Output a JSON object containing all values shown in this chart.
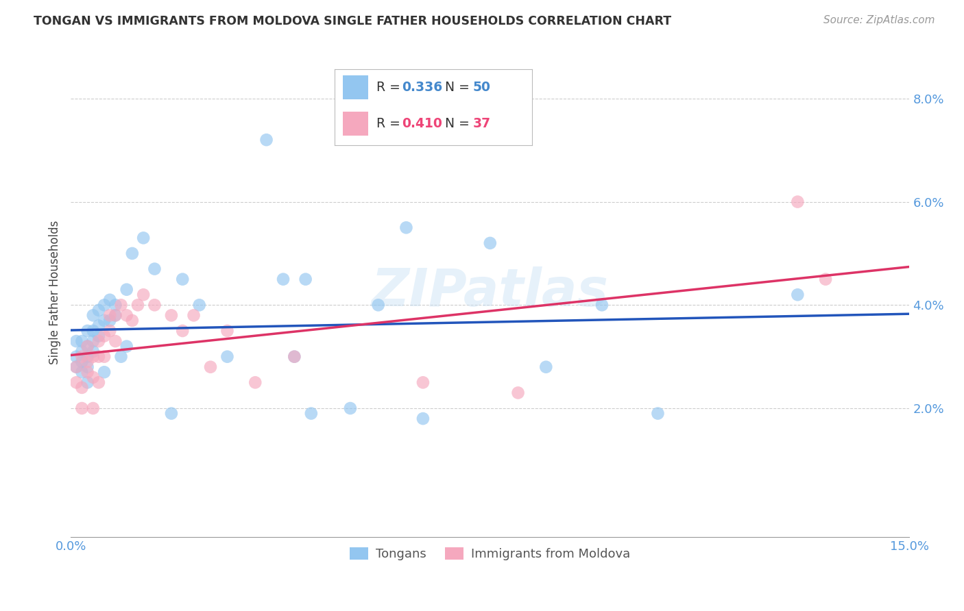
{
  "title": "TONGAN VS IMMIGRANTS FROM MOLDOVA SINGLE FATHER HOUSEHOLDS CORRELATION CHART",
  "source": "Source: ZipAtlas.com",
  "ylabel": "Single Father Households",
  "xlim": [
    0.0,
    0.15
  ],
  "ylim": [
    -0.005,
    0.09
  ],
  "xticks": [
    0.0,
    0.03,
    0.06,
    0.09,
    0.12,
    0.15
  ],
  "yticks": [
    0.02,
    0.04,
    0.06,
    0.08
  ],
  "xticklabels": [
    "0.0%",
    "",
    "",
    "",
    "",
    "15.0%"
  ],
  "yticklabels": [
    "2.0%",
    "4.0%",
    "6.0%",
    "8.0%"
  ],
  "legend1_r": "0.336",
  "legend1_n": "50",
  "legend2_r": "0.410",
  "legend2_n": "37",
  "blue_color": "#93C6F0",
  "pink_color": "#F5A8BE",
  "blue_line_color": "#2255BB",
  "pink_line_color": "#DD3366",
  "watermark": "ZIPatlas",
  "tongans_x": [
    0.001,
    0.001,
    0.001,
    0.002,
    0.002,
    0.002,
    0.002,
    0.003,
    0.003,
    0.003,
    0.003,
    0.003,
    0.004,
    0.004,
    0.004,
    0.004,
    0.005,
    0.005,
    0.005,
    0.006,
    0.006,
    0.006,
    0.007,
    0.007,
    0.008,
    0.008,
    0.009,
    0.01,
    0.01,
    0.011,
    0.013,
    0.015,
    0.018,
    0.02,
    0.023,
    0.028,
    0.035,
    0.038,
    0.04,
    0.042,
    0.043,
    0.05,
    0.055,
    0.06,
    0.063,
    0.075,
    0.085,
    0.095,
    0.105,
    0.13
  ],
  "tongans_y": [
    0.03,
    0.033,
    0.028,
    0.029,
    0.031,
    0.027,
    0.033,
    0.028,
    0.03,
    0.032,
    0.035,
    0.025,
    0.033,
    0.031,
    0.035,
    0.038,
    0.034,
    0.036,
    0.039,
    0.037,
    0.04,
    0.027,
    0.041,
    0.037,
    0.04,
    0.038,
    0.03,
    0.043,
    0.032,
    0.05,
    0.053,
    0.047,
    0.019,
    0.045,
    0.04,
    0.03,
    0.072,
    0.045,
    0.03,
    0.045,
    0.019,
    0.02,
    0.04,
    0.055,
    0.018,
    0.052,
    0.028,
    0.04,
    0.019,
    0.042
  ],
  "moldova_x": [
    0.001,
    0.001,
    0.002,
    0.002,
    0.002,
    0.003,
    0.003,
    0.003,
    0.004,
    0.004,
    0.004,
    0.005,
    0.005,
    0.005,
    0.006,
    0.006,
    0.007,
    0.007,
    0.008,
    0.008,
    0.009,
    0.01,
    0.011,
    0.012,
    0.013,
    0.015,
    0.018,
    0.02,
    0.022,
    0.025,
    0.028,
    0.033,
    0.04,
    0.063,
    0.08,
    0.13,
    0.135
  ],
  "moldova_y": [
    0.025,
    0.028,
    0.024,
    0.03,
    0.02,
    0.029,
    0.027,
    0.032,
    0.026,
    0.03,
    0.02,
    0.03,
    0.025,
    0.033,
    0.034,
    0.03,
    0.035,
    0.038,
    0.038,
    0.033,
    0.04,
    0.038,
    0.037,
    0.04,
    0.042,
    0.04,
    0.038,
    0.035,
    0.038,
    0.028,
    0.035,
    0.025,
    0.03,
    0.025,
    0.023,
    0.06,
    0.045
  ]
}
